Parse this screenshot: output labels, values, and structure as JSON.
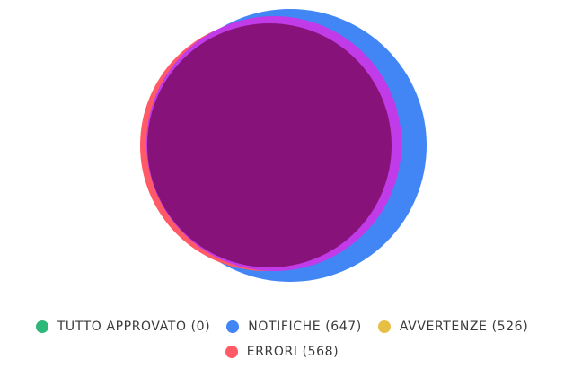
{
  "chart_data": {
    "type": "pie",
    "title": "",
    "series": [
      {
        "name": "TUTTO APPROVATO",
        "value": 0,
        "color": "#2db87a"
      },
      {
        "name": "NOTIFICHE",
        "value": 647,
        "color": "#4285f4"
      },
      {
        "name": "AVVERTENZE",
        "value": 526,
        "color": "#e8bf45"
      },
      {
        "name": "ERRORI",
        "value": 568,
        "color": "#ff5a66"
      }
    ],
    "overlap_colors": {
      "errori_avvertenze": "#c23be8",
      "all_three": "#87127a"
    }
  },
  "legend": {
    "items": [
      {
        "label": "TUTTO APPROVATO (0)",
        "color": "#2db87a"
      },
      {
        "label": "NOTIFICHE (647)",
        "color": "#4285f4"
      },
      {
        "label": "AVVERTENZE (526)",
        "color": "#e8bf45"
      },
      {
        "label": "ERRORI (568)",
        "color": "#ff5a66"
      }
    ]
  }
}
